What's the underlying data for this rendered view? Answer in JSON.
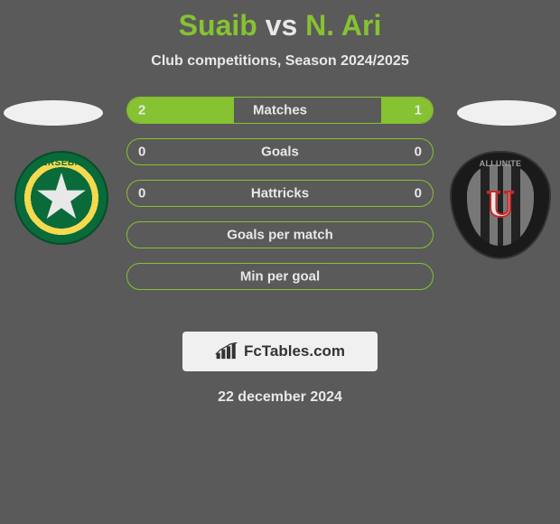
{
  "title": {
    "player1": "Suaib",
    "vs": "vs",
    "player2": "N. Ari",
    "player_color": "#86c232",
    "vs_color": "#e8e8e8",
    "fontsize": 32
  },
  "subtitle": "Club competitions, Season 2024/2025",
  "badges": {
    "left_text": "ERSEBA",
    "right_text": "ALI UNITE"
  },
  "stats": {
    "bar_border_color": "#86c232",
    "bar_fill_color": "#86c232",
    "text_color": "#e8e8e8",
    "rows": [
      {
        "label": "Matches",
        "left": "2",
        "right": "1",
        "left_pct": 35,
        "right_pct": 17
      },
      {
        "label": "Goals",
        "left": "0",
        "right": "0",
        "left_pct": 0,
        "right_pct": 0
      },
      {
        "label": "Hattricks",
        "left": "0",
        "right": "0",
        "left_pct": 0,
        "right_pct": 0
      },
      {
        "label": "Goals per match",
        "left": "",
        "right": "",
        "left_pct": 0,
        "right_pct": 0
      },
      {
        "label": "Min per goal",
        "left": "",
        "right": "",
        "left_pct": 0,
        "right_pct": 0
      }
    ]
  },
  "attribution": {
    "text": "FcTables.com"
  },
  "date": "22 december 2024",
  "colors": {
    "background": "#5a5a5a",
    "accent": "#86c232",
    "text": "#e8e8e8",
    "logo_bg": "#f0f0f0",
    "logo_text": "#333333"
  }
}
